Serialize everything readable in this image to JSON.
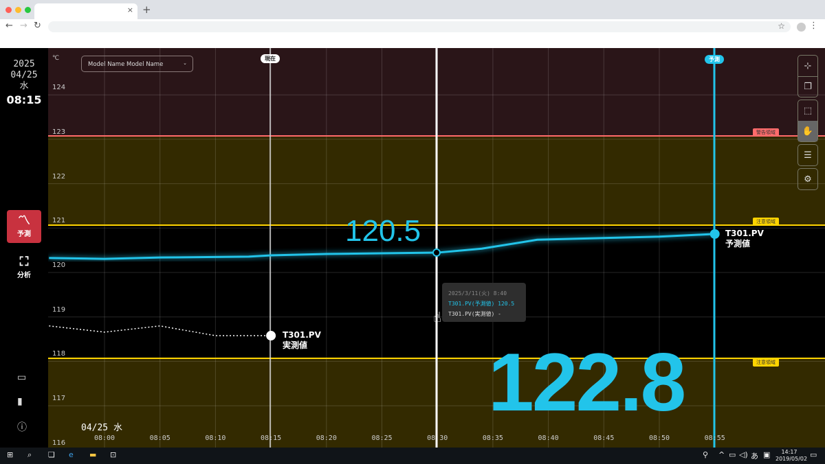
{
  "browser": {
    "new_tab": "+",
    "tab_close": "×"
  },
  "sidebar": {
    "year": "2025",
    "date": "04/25",
    "weekday": "水",
    "time": "08:15",
    "nav": [
      {
        "label": "予測",
        "icon": "trend-line-icon",
        "active": true
      },
      {
        "label": "分析",
        "icon": "focus-icon",
        "active": false
      }
    ],
    "bottom_icons": [
      "chat-icon",
      "bar-chart-icon",
      "help-icon"
    ]
  },
  "chart": {
    "unit": "℃",
    "model_select": "Model Name Model Name",
    "now_label": "現在",
    "forecast_label": "予測",
    "warning_zone": "警告領域",
    "caution_zone": "注意領域",
    "cursor_value": "120.5",
    "big_value": "122.8",
    "date_label": "04/25 水",
    "predicted_tag": [
      "T301.PV",
      "予測値"
    ],
    "actual_tag": [
      "T301.PV",
      "実測値"
    ],
    "tooltip": {
      "time": "2025/3/11(火) 8:40",
      "predicted": "T301.PV(予測値) 120.5",
      "actual": "T301.PV(実測値) -"
    },
    "colors": {
      "predicted": "#22c4ea",
      "warning": "#ff6b6b",
      "caution": "#ffd400",
      "warning_bg": "#2a1518",
      "caution_bg": "#332a00"
    },
    "tools": [
      "bookmark-add-icon",
      "copy-icon",
      "select-area-icon",
      "hand-pan-icon",
      "list-icon",
      "settings-icon"
    ]
  },
  "chart_data": {
    "type": "line",
    "yticks": [
      124,
      123,
      122,
      121,
      120,
      119,
      118,
      117,
      116
    ],
    "xticks": [
      "08:00",
      "08:05",
      "08:10",
      "08:15",
      "08:20",
      "08:25",
      "08:30",
      "08:35",
      "08:40",
      "08:45",
      "08:50",
      "08:55"
    ],
    "ylim": [
      116,
      124.9
    ],
    "series": [
      {
        "name": "T301.PV 予測値",
        "x": [
          "07:55",
          "08:00",
          "08:05",
          "08:13",
          "08:15",
          "08:20",
          "08:30",
          "08:34",
          "08:39",
          "08:45",
          "08:50",
          "08:55"
        ],
        "y": [
          120.08,
          120.06,
          120.09,
          120.11,
          120.14,
          120.17,
          120.2,
          120.29,
          120.49,
          120.53,
          120.56,
          120.62
        ]
      },
      {
        "name": "T301.PV 実測値",
        "x": [
          "07:55",
          "08:00",
          "08:05",
          "08:10",
          "08:15"
        ],
        "y": [
          118.55,
          118.41,
          118.55,
          118.33,
          118.33
        ]
      }
    ]
  },
  "taskbar": {
    "time": "14:17",
    "date": "2019/05/02",
    "ime": "あ"
  }
}
